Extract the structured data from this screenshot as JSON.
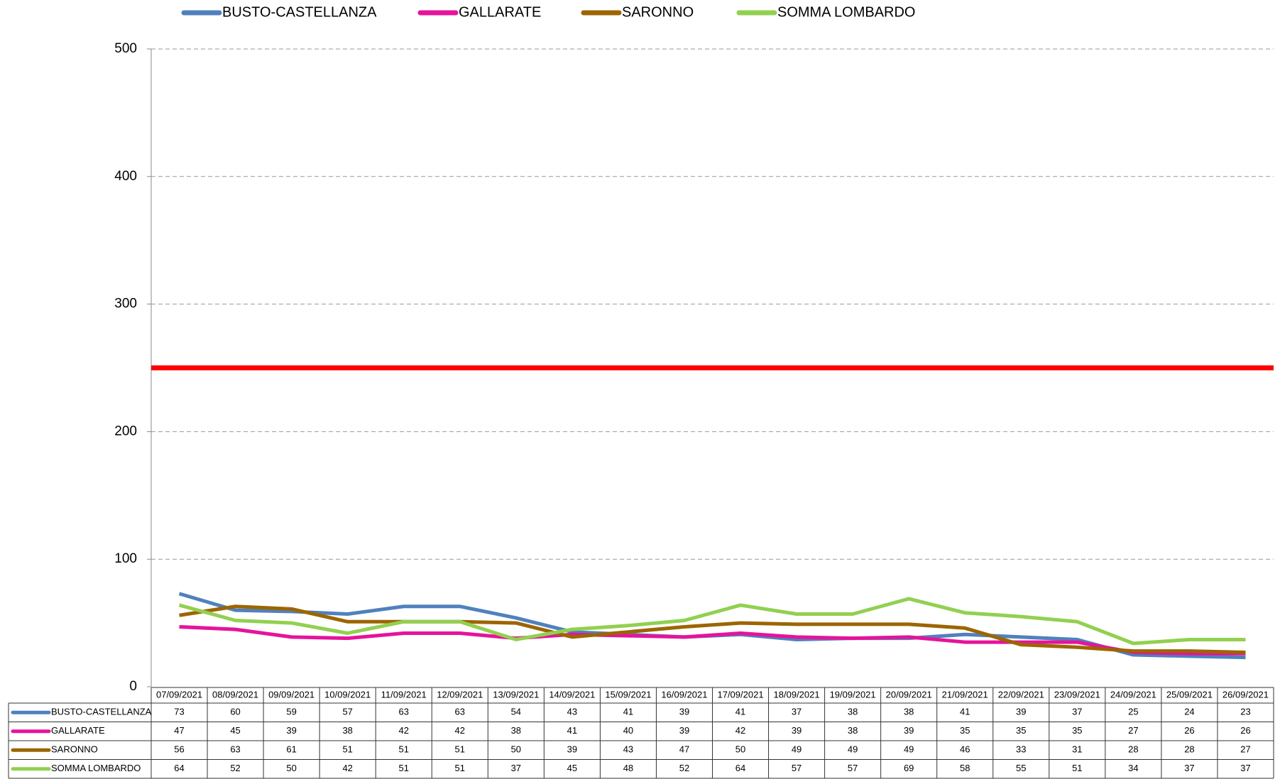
{
  "chart_data": {
    "type": "line",
    "categories": [
      "07/09/2021",
      "08/09/2021",
      "09/09/2021",
      "10/09/2021",
      "11/09/2021",
      "12/09/2021",
      "13/09/2021",
      "14/09/2021",
      "15/09/2021",
      "16/09/2021",
      "17/09/2021",
      "18/09/2021",
      "19/09/2021",
      "20/09/2021",
      "21/09/2021",
      "22/09/2021",
      "23/09/2021",
      "24/09/2021",
      "25/09/2021",
      "26/09/2021"
    ],
    "series": [
      {
        "name": "BUSTO-CASTELLANZA",
        "color": "#4f81bd",
        "values": [
          73,
          60,
          59,
          57,
          63,
          63,
          54,
          43,
          41,
          39,
          41,
          37,
          38,
          38,
          41,
          39,
          37,
          25,
          24,
          23
        ]
      },
      {
        "name": "GALLARATE",
        "color": "#e6139b",
        "values": [
          47,
          45,
          39,
          38,
          42,
          42,
          38,
          41,
          40,
          39,
          42,
          39,
          38,
          39,
          35,
          35,
          35,
          27,
          26,
          26
        ]
      },
      {
        "name": "SARONNO",
        "color": "#9c6500",
        "values": [
          56,
          63,
          61,
          51,
          51,
          51,
          50,
          39,
          43,
          47,
          50,
          49,
          49,
          49,
          46,
          33,
          31,
          28,
          28,
          27
        ]
      },
      {
        "name": "SOMMA LOMBARDO",
        "color": "#92d050",
        "values": [
          64,
          52,
          50,
          42,
          51,
          51,
          37,
          45,
          48,
          52,
          64,
          57,
          57,
          69,
          58,
          55,
          51,
          34,
          37,
          37
        ]
      }
    ],
    "reference_line": {
      "value": 250,
      "color": "#ff0000"
    },
    "ylim": [
      0,
      500
    ],
    "yticks": [
      0,
      100,
      200,
      300,
      400,
      500
    ],
    "grid": true,
    "legend": "top",
    "data_table": true
  }
}
